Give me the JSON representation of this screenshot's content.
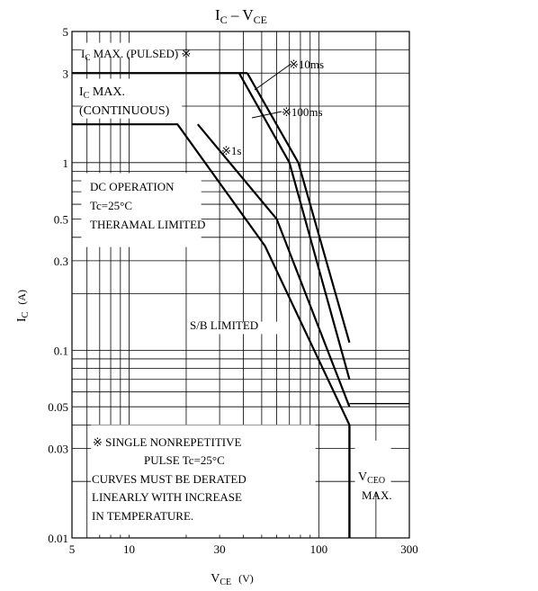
{
  "chart_data": {
    "type": "line",
    "title": {
      "main": "I",
      "main_sub": "C",
      "sep": " – ",
      "sec": "V",
      "sec_sub": "CE"
    },
    "x_axis": {
      "label": "V",
      "label_sub": "CE",
      "unit": "(V)",
      "scale": "log",
      "range": [
        5,
        300
      ],
      "tick_values": [
        5,
        10,
        30,
        100,
        300
      ],
      "tick_labels": [
        "5",
        "10",
        "30",
        "100",
        "300"
      ]
    },
    "y_axis": {
      "label": "I",
      "label_sub": "C",
      "unit": "(A)",
      "scale": "log",
      "range": [
        0.01,
        5
      ],
      "tick_values": [
        0.01,
        0.03,
        0.05,
        0.1,
        0.3,
        0.5,
        1,
        3,
        5
      ],
      "tick_labels": [
        "0.01",
        "0.03",
        "0.05",
        "0.1",
        "0.3",
        "0.5",
        "1",
        "3",
        "5"
      ]
    },
    "grid": true,
    "series": [
      {
        "name": "10ms",
        "points": [
          [
            42,
            3
          ],
          [
            78,
            1
          ],
          [
            145,
            0.11
          ]
        ]
      },
      {
        "name": "100ms",
        "points": [
          [
            38,
            3
          ],
          [
            70,
            1
          ],
          [
            145,
            0.07
          ]
        ]
      },
      {
        "name": "1s",
        "points": [
          [
            23,
            1.6
          ],
          [
            60,
            0.5
          ],
          [
            145,
            0.05
          ]
        ]
      },
      {
        "name": "DC",
        "points": [
          [
            5,
            1.6
          ],
          [
            18,
            1.6
          ],
          [
            52,
            0.36
          ],
          [
            145,
            0.04
          ]
        ]
      }
    ],
    "vceo_max": 145,
    "annotations": {
      "ic_pulsed": "I",
      "ic_pulsed_sub": "C",
      "ic_pulsed_rest": " MAX. (PULSED) ※",
      "ic_cont_1": "I",
      "ic_cont_1_sub": "C",
      "ic_cont_1_rest": " MAX.",
      "ic_cont_2": "(CONTINUOUS)",
      "label_10ms": "※10ms",
      "label_100ms": "※100ms",
      "label_1s": "※1s",
      "dc_1": "DC OPERATION",
      "dc_2": "Tc=25°C",
      "dc_3": "THERAMAL LIMITED",
      "sb": "S/B LIMITED",
      "note_1": "※  SINGLE NONREPETITIVE",
      "note_2": "PULSE Tc=25°C",
      "note_3": "CURVES MUST BE DERATED",
      "note_4": "LINEARLY WITH INCREASE",
      "note_5": "IN TEMPERATURE.",
      "vceo_1": "V",
      "vceo_1_sub": "CEO",
      "vceo_2": "MAX."
    }
  }
}
